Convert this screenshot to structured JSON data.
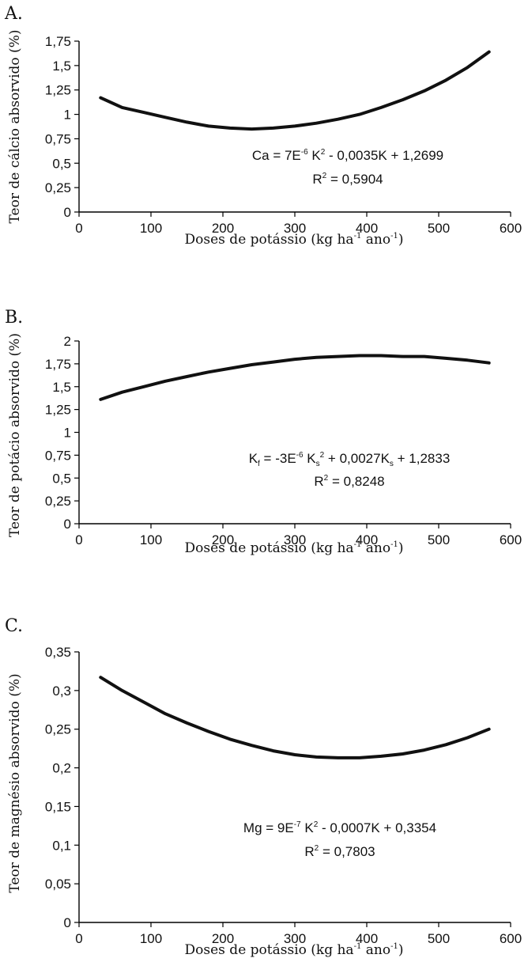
{
  "chart_data": [
    {
      "type": "line",
      "panel_label": "A.",
      "ylabel": "Teor de cálcio absorvido  (%)",
      "xlabel": {
        "main": "Doses de potássio (kg ha",
        "sup1": "-1",
        "mid": " ano",
        "sup2": "-1",
        "end": ")"
      },
      "xlim": [
        0,
        600
      ],
      "ylim": [
        0,
        1.75
      ],
      "x_ticks": [
        0,
        100,
        200,
        300,
        400,
        500,
        600
      ],
      "x_tick_labels": [
        "0",
        "100",
        "200",
        "300",
        "400",
        "500",
        "600"
      ],
      "y_ticks": [
        0,
        0.25,
        0.5,
        0.75,
        1,
        1.25,
        1.5,
        1.75
      ],
      "y_tick_labels": [
        "0",
        "0,25",
        "0,5",
        "0,75",
        "1",
        "1,25",
        "1,5",
        "1,75"
      ],
      "series": [
        {
          "x": [
            30,
            60,
            90,
            120,
            150,
            180,
            210,
            240,
            270,
            300,
            330,
            360,
            390,
            420,
            450,
            480,
            510,
            540,
            570
          ],
          "y": [
            1.17,
            1.07,
            1.02,
            0.97,
            0.92,
            0.88,
            0.86,
            0.85,
            0.86,
            0.88,
            0.91,
            0.95,
            1.0,
            1.07,
            1.15,
            1.24,
            1.35,
            1.48,
            1.64
          ]
        }
      ],
      "equation": {
        "p1": "Ca = 7E",
        "s1": "-6",
        "p2": " K",
        "s2": "2",
        "p3": " - 0,0035K + 1,2699"
      },
      "r2": {
        "p1": "R",
        "s1": "2",
        "p2": " = 0,5904"
      }
    },
    {
      "type": "line",
      "panel_label": "B.",
      "ylabel": "Teor de potácio absorvido  (%)",
      "xlabel": {
        "main": "Doses de potássio (kg ha",
        "sup1": "-1",
        "mid": " ano",
        "sup2": "-1",
        "end": ")"
      },
      "xlim": [
        0,
        600
      ],
      "ylim": [
        0,
        2
      ],
      "x_ticks": [
        0,
        100,
        200,
        300,
        400,
        500,
        600
      ],
      "x_tick_labels": [
        "0",
        "100",
        "200",
        "300",
        "400",
        "500",
        "600"
      ],
      "y_ticks": [
        0,
        0.25,
        0.5,
        0.75,
        1,
        1.25,
        1.5,
        1.75,
        2
      ],
      "y_tick_labels": [
        "0",
        "0,25",
        "0,5",
        "0,75",
        "1",
        "1,25",
        "1,5",
        "1,75",
        "2"
      ],
      "series": [
        {
          "x": [
            30,
            60,
            90,
            120,
            150,
            180,
            210,
            240,
            270,
            300,
            330,
            360,
            390,
            420,
            450,
            480,
            510,
            540,
            570
          ],
          "y": [
            1.36,
            1.44,
            1.5,
            1.56,
            1.61,
            1.66,
            1.7,
            1.74,
            1.77,
            1.8,
            1.82,
            1.83,
            1.84,
            1.84,
            1.83,
            1.83,
            1.81,
            1.79,
            1.76
          ]
        }
      ],
      "equation": {
        "p1": "K",
        "sub1": "f",
        "p2": " = -3E",
        "s1": "-6",
        "p3": " K",
        "sub2": "s",
        "s2": "2",
        "p4": " + 0,0027K",
        "sub3": "s",
        "p5": " + 1,2833"
      },
      "r2": {
        "p1": "R",
        "s1": "2",
        "p2": " = 0,8248"
      }
    },
    {
      "type": "line",
      "panel_label": "C.",
      "ylabel": "Teor de magnésio absorvido  (%)",
      "xlabel": {
        "main": "Doses de potássio (kg ha",
        "sup1": "-1",
        "mid": " ano",
        "sup2": "-1",
        "end": ")"
      },
      "xlim": [
        0,
        600
      ],
      "ylim": [
        0,
        0.35
      ],
      "x_ticks": [
        0,
        100,
        200,
        300,
        400,
        500,
        600
      ],
      "x_tick_labels": [
        "0",
        "100",
        "200",
        "300",
        "400",
        "500",
        "600"
      ],
      "y_ticks": [
        0,
        0.05,
        0.1,
        0.15,
        0.2,
        0.25,
        0.3,
        0.35
      ],
      "y_tick_labels": [
        "0",
        "0,05",
        "0,1",
        "0,15",
        "0,2",
        "0,25",
        "0,3",
        "0,35"
      ],
      "series": [
        {
          "x": [
            30,
            60,
            90,
            120,
            150,
            180,
            210,
            240,
            270,
            300,
            330,
            360,
            390,
            420,
            450,
            480,
            510,
            540,
            570
          ],
          "y": [
            0.317,
            0.3,
            0.285,
            0.27,
            0.258,
            0.247,
            0.237,
            0.229,
            0.222,
            0.217,
            0.214,
            0.213,
            0.213,
            0.215,
            0.218,
            0.223,
            0.23,
            0.239,
            0.25
          ]
        }
      ],
      "equation": {
        "p1": "Mg = 9E",
        "s1": "-7",
        "p2": " K",
        "s2": "2",
        "p3": " - 0,0007K + 0,3354"
      },
      "r2": {
        "p1": "R",
        "s1": "2",
        "p2": " = 0,7803"
      }
    }
  ]
}
